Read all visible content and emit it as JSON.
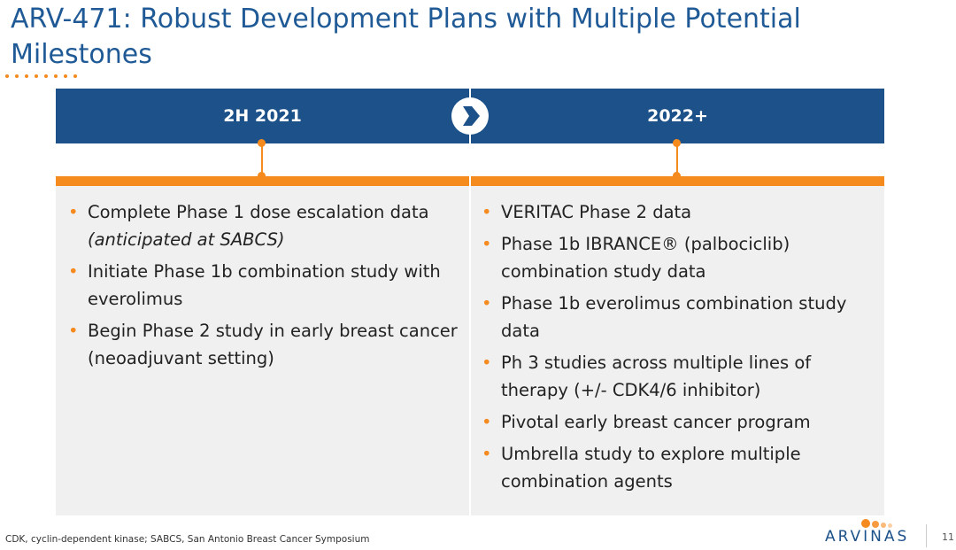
{
  "title": "ARV-471: Robust Development Plans with Multiple Potential Milestones",
  "columns": [
    {
      "header": "2H 2021",
      "items": [
        {
          "text": "Complete Phase 1 dose escalation data ",
          "italic": "(anticipated at SABCS)"
        },
        {
          "text": "Initiate Phase 1b combination study with everolimus"
        },
        {
          "text": "Begin Phase 2 study in early breast cancer (neoadjuvant setting)"
        }
      ]
    },
    {
      "header": "2022+",
      "items": [
        {
          "text": "VERITAC Phase 2 data"
        },
        {
          "text": "Phase 1b IBRANCE® (palbociclib) combination study data"
        },
        {
          "text": "Phase 1b everolimus combination study data"
        },
        {
          "text": "Ph 3 studies across multiple lines of therapy (+/- CDK4/6 inhibitor)"
        },
        {
          "text": "Pivotal early breast cancer program"
        },
        {
          "text": "Umbrella study to explore multiple combination agents"
        }
      ]
    }
  ],
  "footnote": "CDK, cyclin-dependent kinase; SABCS, San Antonio Breast Cancer Symposium",
  "logo": "ARVINAS",
  "page_number": "11",
  "colors": {
    "primary": "#1c5189",
    "accent": "#f58a1f",
    "panel": "#f0f0f0"
  },
  "icons": {
    "timeline": "chevron-right-icon"
  }
}
